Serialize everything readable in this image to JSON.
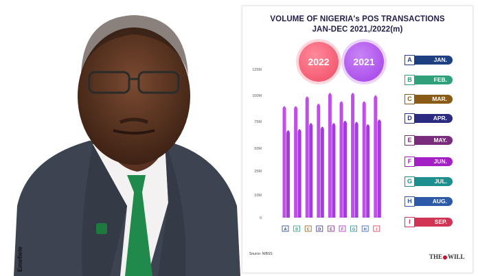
{
  "photo": {
    "credit": "Emefiele"
  },
  "infographic": {
    "title_line1": "VOLUME OF NIGERIA's POS TRANSACTIONS",
    "title_line2": "JAN-DEC 2021,/2022(m)",
    "badge_2022": "2022",
    "badge_2021": "2021",
    "source": "Source: NIBSS",
    "logo_left": "THE",
    "logo_right": "WILL",
    "legend": [
      {
        "letter": "A",
        "label": "JAN.",
        "color": "#1f3f83"
      },
      {
        "letter": "B",
        "label": "FEB.",
        "color": "#2fa07a"
      },
      {
        "letter": "C",
        "label": "MAR.",
        "color": "#8a5b17"
      },
      {
        "letter": "D",
        "label": "APR.",
        "color": "#2b2b82"
      },
      {
        "letter": "E",
        "label": "MAY.",
        "color": "#7b2b7c"
      },
      {
        "letter": "F",
        "label": "JUN.",
        "color": "#a321c4"
      },
      {
        "letter": "G",
        "label": "JUL.",
        "color": "#1f8e8e"
      },
      {
        "letter": "H",
        "label": "AUG.",
        "color": "#2c5aa8"
      },
      {
        "letter": "I",
        "label": "SEP.",
        "color": "#d13355"
      }
    ]
  },
  "chart_data": {
    "type": "bar",
    "categories": [
      "A",
      "B",
      "C",
      "D",
      "E",
      "F",
      "G",
      "H",
      "I"
    ],
    "series": [
      {
        "name": "2022",
        "color": "#c04fe8",
        "values": [
          92,
          92,
          100,
          94,
          103,
          96,
          103,
          96,
          101
        ]
      },
      {
        "name": "2021",
        "color": "#a63ae2",
        "values": [
          72,
          73,
          78,
          75,
          78,
          80,
          79,
          77,
          81
        ]
      }
    ],
    "yticks": [
      "0",
      "10M",
      "25M",
      "50M",
      "75M",
      "100M",
      "125M"
    ],
    "ytick_values": [
      0,
      10,
      25,
      50,
      75,
      100,
      125
    ],
    "ylim": [
      0,
      125
    ],
    "legend_position": "right"
  }
}
